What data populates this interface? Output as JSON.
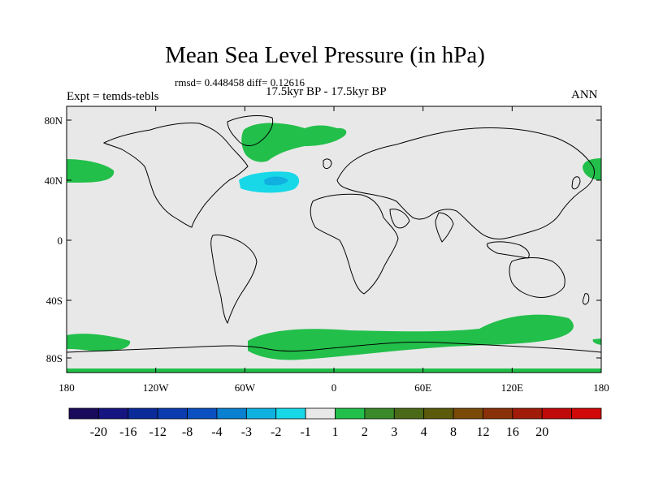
{
  "title": "Mean Sea Level Pressure (in hPa)",
  "stats": "rmsd= 0.448458 diff= 0.12616",
  "period": "17.5kyr BP - 17.5kyr BP",
  "expt": "Expt = temds-tebls",
  "season": "ANN",
  "map": {
    "ocean_color": "#e8e8e8",
    "coast_color": "#000000",
    "lat_ticks": [
      "80N",
      "40N",
      "0",
      "40S",
      "80S"
    ],
    "lon_ticks": [
      "180",
      "120W",
      "60W",
      "0",
      "60E",
      "120E",
      "180"
    ]
  },
  "colorbar": {
    "colors": [
      "#1a0a5c",
      "#161480",
      "#0a2a9a",
      "#0a3cb0",
      "#0a50c0",
      "#0a80d0",
      "#10b0e0",
      "#18d8e8",
      "#e8e8e8",
      "#22bf4a",
      "#3a8a2a",
      "#4a6a18",
      "#5a5a0a",
      "#7a4a08",
      "#8a3008",
      "#a01c08",
      "#c00a0a",
      "#d00808"
    ],
    "labels": [
      "-20",
      "-16",
      "-12",
      "-8",
      "-4",
      "-3",
      "-2",
      "-1",
      "1",
      "2",
      "3",
      "4",
      "8",
      "12",
      "16",
      "20"
    ]
  },
  "anomaly_colors": {
    "positive": "#22bf4a",
    "negative": "#18d8e8",
    "negative_core": "#10b0e0"
  }
}
